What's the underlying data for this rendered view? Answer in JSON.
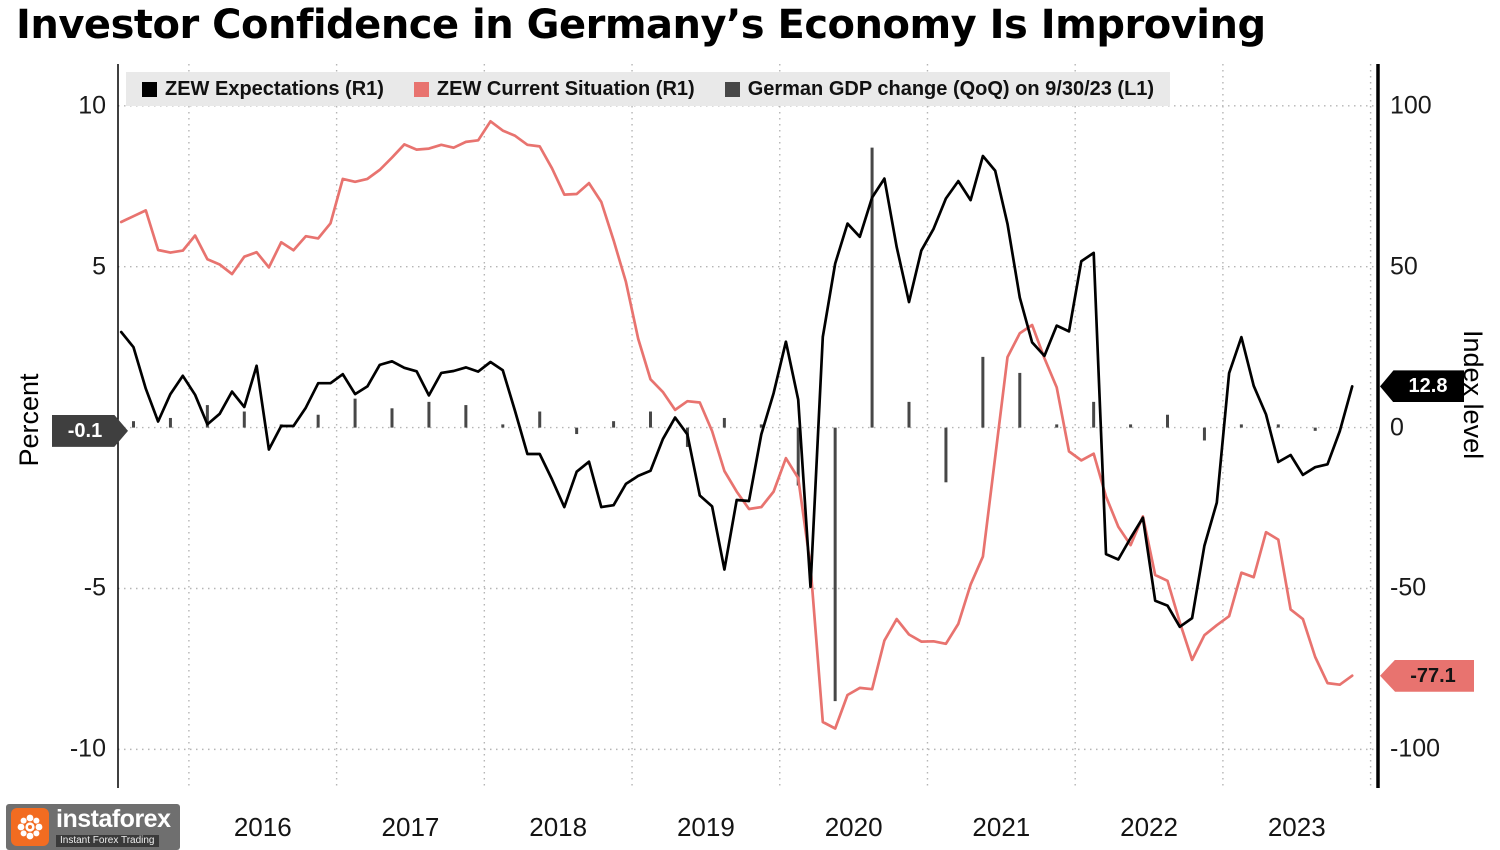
{
  "title": "Investor Confidence in Germany’s Economy Is Improving",
  "legend": [
    {
      "label": "ZEW Expectations (R1)",
      "color": "#000000"
    },
    {
      "label": "ZEW Current Situation (R1)",
      "color": "#e8736f"
    },
    {
      "label": "German GDP change (QoQ) on 9/30/23 (L1)",
      "color": "#474747"
    }
  ],
  "left_axis": {
    "label": "Percent",
    "ticks": [
      10,
      5,
      -5,
      -10
    ]
  },
  "right_axis": {
    "label": "Index level",
    "ticks": [
      100,
      50,
      0,
      -50,
      -100
    ]
  },
  "x_axis": {
    "ticks": [
      2016,
      2017,
      2018,
      2019,
      2020,
      2021,
      2022,
      2023
    ]
  },
  "tags": {
    "gdp": {
      "value": "-0.1",
      "color": "#3f3f3f"
    },
    "expectations": {
      "value": "12.8",
      "color": "#000000"
    },
    "current": {
      "value": "-77.1",
      "color": "#e8736f"
    }
  },
  "watermark": {
    "name": "instaforex",
    "tagline": "Instant Forex Trading",
    "accent": "#f26c21"
  },
  "chart_data": {
    "type": "line",
    "title": "Investor Confidence in Germany’s Economy Is Improving",
    "x_range": [
      2015.52,
      2024.05
    ],
    "grid_years": [
      2016,
      2017,
      2018,
      2019,
      2020,
      2021,
      2022,
      2023,
      2024
    ],
    "y_right_range": [
      -112,
      113
    ],
    "y_left_range": [
      -11.2,
      11.3
    ],
    "right_ticks": [
      100,
      50,
      0,
      -50,
      -100
    ],
    "left_ticks": [
      10,
      5,
      -5,
      -10
    ],
    "series": [
      {
        "name": "ZEW Expectations (R1)",
        "type": "line",
        "axis": "right",
        "color": "#000000",
        "x_start": 2015.5417,
        "x_step": 0.0833333,
        "values": [
          29.7,
          25.0,
          12.1,
          1.9,
          10.4,
          16.1,
          10.2,
          1.0,
          4.3,
          11.2,
          6.4,
          19.2,
          -6.8,
          0.5,
          0.5,
          6.2,
          13.8,
          13.8,
          16.6,
          10.4,
          12.8,
          19.5,
          20.6,
          18.6,
          17.5,
          10.0,
          17.0,
          17.6,
          18.7,
          17.4,
          20.4,
          17.8,
          5.1,
          -8.2,
          -8.2,
          -16.1,
          -24.7,
          -13.7,
          -10.6,
          -24.7,
          -24.1,
          -17.5,
          -15.0,
          -13.4,
          -3.6,
          3.1,
          -2.1,
          -21.1,
          -24.5,
          -44.1,
          -22.5,
          -22.8,
          -2.1,
          10.7,
          26.7,
          8.7,
          -49.5,
          28.2,
          51.0,
          63.4,
          59.3,
          71.5,
          77.4,
          56.1,
          39.0,
          55.0,
          61.8,
          71.2,
          76.6,
          70.7,
          84.4,
          79.8,
          63.3,
          40.4,
          26.5,
          22.3,
          31.7,
          29.9,
          51.7,
          54.3,
          -39.3,
          -41.0,
          -34.3,
          -28.0,
          -53.8,
          -55.3,
          -61.9,
          -59.2,
          -36.7,
          -23.3,
          16.9,
          28.1,
          13.0,
          4.1,
          -10.7,
          -8.5,
          -14.7,
          -12.3,
          -11.4,
          -1.1,
          12.8
        ]
      },
      {
        "name": "ZEW Current Situation (R1)",
        "type": "line",
        "axis": "right",
        "color": "#e8736f",
        "x_start": 2015.5417,
        "x_step": 0.0833333,
        "values": [
          63.9,
          65.7,
          67.5,
          55.2,
          54.4,
          55.0,
          59.7,
          52.3,
          50.7,
          47.7,
          53.1,
          54.5,
          49.8,
          57.6,
          55.1,
          59.5,
          58.8,
          63.5,
          77.3,
          76.4,
          77.3,
          80.1,
          83.9,
          88.0,
          86.4,
          86.7,
          87.9,
          87.0,
          88.8,
          89.3,
          95.2,
          92.3,
          90.7,
          87.9,
          87.4,
          80.6,
          72.4,
          72.6,
          76.0,
          70.1,
          58.2,
          45.3,
          27.6,
          15.0,
          11.1,
          5.5,
          8.2,
          7.8,
          -1.1,
          -13.5,
          -19.9,
          -25.3,
          -24.7,
          -19.9,
          -9.5,
          -15.7,
          -43.1,
          -91.5,
          -93.5,
          -83.1,
          -80.9,
          -81.3,
          -66.2,
          -59.5,
          -64.3,
          -66.5,
          -66.4,
          -67.2,
          -61.0,
          -48.8,
          -40.1,
          -9.1,
          21.9,
          29.3,
          31.9,
          21.6,
          12.5,
          -7.4,
          -10.2,
          -8.1,
          -21.4,
          -30.8,
          -36.5,
          -27.6,
          -45.8,
          -47.6,
          -60.5,
          -72.2,
          -64.5,
          -61.4,
          -58.6,
          -45.1,
          -46.5,
          -32.5,
          -34.8,
          -56.5,
          -59.5,
          -71.3,
          -79.4,
          -79.9,
          -77.1
        ]
      },
      {
        "name": "German GDP change (QoQ) on 9/30/23 (L1)",
        "type": "bar",
        "axis": "left",
        "color": "#474747",
        "points": [
          [
            2015.625,
            0.2
          ],
          [
            2015.875,
            0.3
          ],
          [
            2016.125,
            0.7
          ],
          [
            2016.375,
            0.5
          ],
          [
            2016.625,
            0.1
          ],
          [
            2016.875,
            0.4
          ],
          [
            2017.125,
            0.9
          ],
          [
            2017.375,
            0.6
          ],
          [
            2017.625,
            0.8
          ],
          [
            2017.875,
            0.7
          ],
          [
            2018.125,
            0.1
          ],
          [
            2018.375,
            0.5
          ],
          [
            2018.625,
            -0.2
          ],
          [
            2018.875,
            0.2
          ],
          [
            2019.125,
            0.5
          ],
          [
            2019.375,
            -0.6
          ],
          [
            2019.625,
            0.3
          ],
          [
            2019.875,
            0.1
          ],
          [
            2020.125,
            -1.8
          ],
          [
            2020.375,
            -8.5
          ],
          [
            2020.625,
            8.7
          ],
          [
            2020.875,
            0.8
          ],
          [
            2021.125,
            -1.7
          ],
          [
            2021.375,
            2.2
          ],
          [
            2021.625,
            1.7
          ],
          [
            2021.875,
            0.1
          ],
          [
            2022.125,
            0.8
          ],
          [
            2022.375,
            0.1
          ],
          [
            2022.625,
            0.4
          ],
          [
            2022.875,
            -0.4
          ],
          [
            2023.125,
            0.1
          ],
          [
            2023.375,
            0.1
          ],
          [
            2023.625,
            -0.1
          ]
        ]
      }
    ]
  }
}
